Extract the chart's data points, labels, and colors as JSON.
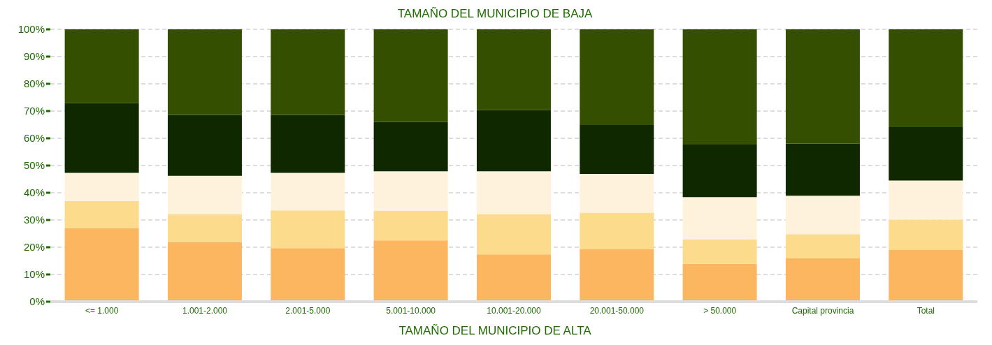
{
  "chart_data": {
    "type": "bar",
    "stacked": true,
    "title": "TAMAÑO DEL MUNICIPIO DE BAJA",
    "xlabel": "TAMAÑO DEL MUNICIPIO DE ALTA",
    "categories": [
      "<= 1.000",
      "1.001-2.000",
      "2.001-5.000",
      "5.001-10.000",
      "10.001-20.000",
      "20.001-50.000",
      "> 50.000",
      "Capital provincia",
      "Total"
    ],
    "series": [
      {
        "color": "#fcb65f",
        "values": [
          26.9,
          21.9,
          19.7,
          22.5,
          17.4,
          19.2,
          13.9,
          16.0,
          19.0
        ]
      },
      {
        "color": "#fddb8c",
        "values": [
          10.0,
          10.2,
          13.8,
          10.9,
          14.8,
          13.5,
          9.0,
          8.8,
          11.1
        ]
      },
      {
        "color": "#fef2dc",
        "values": [
          10.4,
          14.1,
          13.8,
          14.5,
          15.7,
          14.2,
          15.5,
          14.1,
          14.4
        ]
      },
      {
        "color": "#0f2800",
        "values": [
          25.6,
          22.4,
          21.3,
          18.1,
          22.4,
          18.0,
          19.3,
          19.2,
          19.6
        ]
      },
      {
        "color": "#344f00",
        "values": [
          27.1,
          31.4,
          31.4,
          34.0,
          29.7,
          35.1,
          42.3,
          41.9,
          35.9
        ]
      }
    ],
    "ylim": [
      0,
      100
    ],
    "yticks": [
      {
        "value": 0,
        "label": "0%"
      },
      {
        "value": 10,
        "label": "10%"
      },
      {
        "value": 20,
        "label": "20%"
      },
      {
        "value": 30,
        "label": "30%"
      },
      {
        "value": 40,
        "label": "40%"
      },
      {
        "value": 50,
        "label": "50%"
      },
      {
        "value": 60,
        "label": "60%"
      },
      {
        "value": 70,
        "label": "70%"
      },
      {
        "value": 80,
        "label": "80%"
      },
      {
        "value": 90,
        "label": "90%"
      },
      {
        "value": 100,
        "label": "100%"
      }
    ],
    "grid": "y",
    "legend": false
  }
}
